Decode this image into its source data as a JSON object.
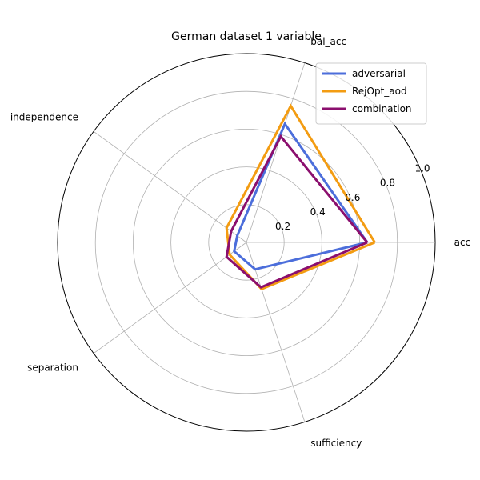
{
  "chart_data": {
    "type": "radar",
    "title": "German dataset 1 variable",
    "axes": [
      "acc",
      "bal_acc",
      "independence",
      "separation",
      "sufficiency"
    ],
    "rlim": [
      0,
      1.0
    ],
    "r_ticks": [
      "0.2",
      "0.4",
      "0.6",
      "0.8",
      "1.0"
    ],
    "r_tick_values": [
      0.2,
      0.4,
      0.6,
      0.8,
      1.0
    ],
    "grid": true,
    "legend_position": "top-right",
    "series": [
      {
        "name": "adversarial",
        "color": "#4C6EDB",
        "values": [
          0.64,
          0.66,
          0.06,
          0.08,
          0.15
        ]
      },
      {
        "name": "RejOpt_aod",
        "color": "#F39C12",
        "values": [
          0.68,
          0.76,
          0.13,
          0.11,
          0.26
        ]
      },
      {
        "name": "combination",
        "color": "#8B0F6E",
        "values": [
          0.64,
          0.59,
          0.1,
          0.13,
          0.25
        ]
      }
    ]
  }
}
